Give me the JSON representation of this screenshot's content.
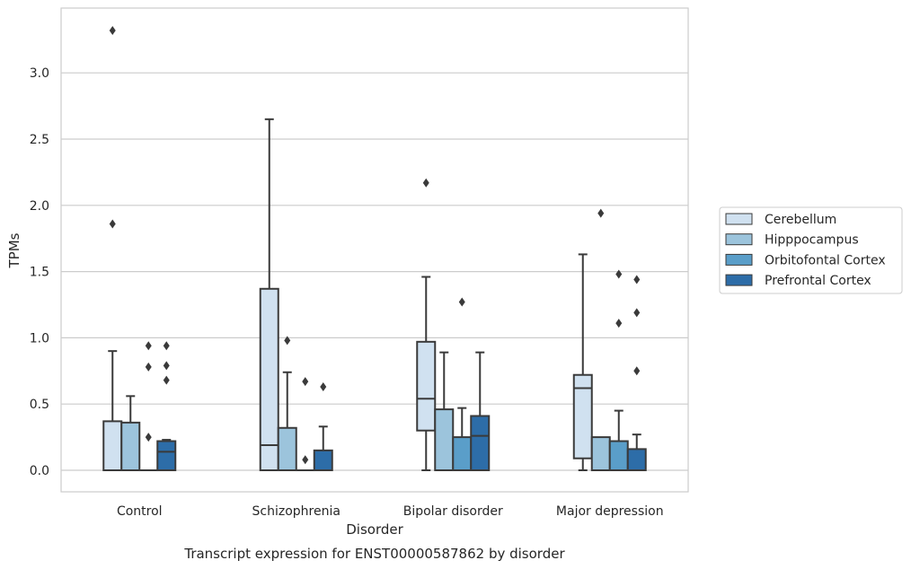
{
  "chart_data": {
    "type": "boxplot",
    "title": "",
    "caption": "Transcript expression for ENST00000587862 by disorder",
    "xlabel": "Disorder",
    "ylabel": "TPMs",
    "ylim": [
      -0.16,
      3.5
    ],
    "yticks": [
      0.0,
      0.5,
      1.0,
      1.5,
      2.0,
      2.5,
      3.0
    ],
    "ytick_labels": [
      "0.0",
      "0.5",
      "1.0",
      "1.5",
      "2.0",
      "2.5",
      "3.0"
    ],
    "grid": "horizontal",
    "legend_placement": "right",
    "categories": [
      "Control",
      "Schizophrenia",
      "Bipolar disorder",
      "Major depression"
    ],
    "series": [
      {
        "name": "Cerebellum",
        "color": "#d0e1f0",
        "boxes": [
          {
            "whislo": 0.0,
            "q1": 0.0,
            "med": 0.0,
            "q3": 0.37,
            "whishi": 0.9,
            "fliers": [
              1.86,
              3.32
            ]
          },
          {
            "whislo": 0.0,
            "q1": 0.0,
            "med": 0.19,
            "q3": 1.37,
            "whishi": 2.65,
            "fliers": []
          },
          {
            "whislo": 0.0,
            "q1": 0.3,
            "med": 0.54,
            "q3": 0.97,
            "whishi": 1.46,
            "fliers": [
              2.17
            ]
          },
          {
            "whislo": 0.0,
            "q1": 0.09,
            "med": 0.62,
            "q3": 0.72,
            "whishi": 1.63,
            "fliers": []
          }
        ]
      },
      {
        "name": "Hipppocampus",
        "color": "#9cc4dc",
        "boxes": [
          {
            "whislo": 0.0,
            "q1": 0.0,
            "med": 0.0,
            "q3": 0.36,
            "whishi": 0.56,
            "fliers": []
          },
          {
            "whislo": 0.0,
            "q1": 0.0,
            "med": 0.0,
            "q3": 0.32,
            "whishi": 0.74,
            "fliers": [
              0.98
            ]
          },
          {
            "whislo": 0.0,
            "q1": 0.0,
            "med": 0.0,
            "q3": 0.46,
            "whishi": 0.89,
            "fliers": []
          },
          {
            "whislo": 0.0,
            "q1": 0.0,
            "med": 0.0,
            "q3": 0.25,
            "whishi": 0.25,
            "fliers": [
              1.94
            ]
          }
        ]
      },
      {
        "name": "Orbitofontal Cortex",
        "color": "#5a9ec9",
        "boxes": [
          {
            "whislo": 0.0,
            "q1": 0.0,
            "med": 0.0,
            "q3": 0.0,
            "whishi": 0.0,
            "fliers": [
              0.25,
              0.78,
              0.94
            ]
          },
          {
            "whislo": 0.0,
            "q1": 0.0,
            "med": 0.0,
            "q3": 0.0,
            "whishi": 0.0,
            "fliers": [
              0.08,
              0.67
            ]
          },
          {
            "whislo": 0.0,
            "q1": 0.0,
            "med": 0.0,
            "q3": 0.25,
            "whishi": 0.47,
            "fliers": [
              1.27
            ]
          },
          {
            "whislo": 0.0,
            "q1": 0.0,
            "med": 0.0,
            "q3": 0.22,
            "whishi": 0.45,
            "fliers": [
              1.11,
              1.48
            ]
          }
        ]
      },
      {
        "name": "Prefrontal Cortex",
        "color": "#2d6da8",
        "boxes": [
          {
            "whislo": 0.0,
            "q1": 0.0,
            "med": 0.14,
            "q3": 0.22,
            "whishi": 0.23,
            "fliers": [
              0.68,
              0.79,
              0.94
            ]
          },
          {
            "whislo": 0.0,
            "q1": 0.0,
            "med": 0.0,
            "q3": 0.15,
            "whishi": 0.33,
            "fliers": [
              0.63
            ]
          },
          {
            "whislo": 0.0,
            "q1": 0.0,
            "med": 0.26,
            "q3": 0.41,
            "whishi": 0.89,
            "fliers": []
          },
          {
            "whislo": 0.0,
            "q1": 0.0,
            "med": 0.0,
            "q3": 0.16,
            "whishi": 0.27,
            "fliers": [
              0.75,
              1.19,
              1.44
            ]
          }
        ]
      }
    ]
  }
}
